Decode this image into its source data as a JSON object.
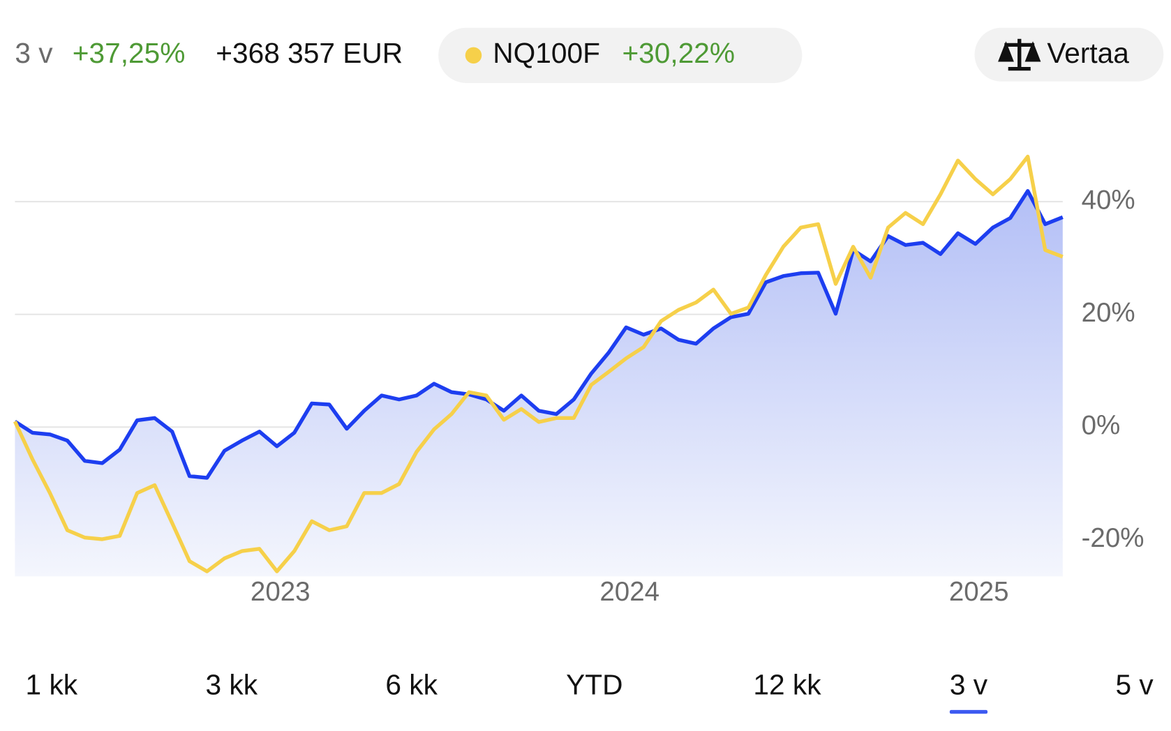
{
  "header": {
    "period": "3 v",
    "change_pct": "+37,25%",
    "change_abs": "+368 357 EUR"
  },
  "compare": {
    "change": "+30,22%",
    "button": "Vertaa"
  },
  "periods": {
    "labels": [
      "1 kk",
      "3 kk",
      "6 kk",
      "YTD",
      "12 kk",
      "3 v",
      "5 v"
    ],
    "selected": 5
  },
  "chart_data": {
    "type": "line",
    "x": [
      2022.24,
      2022.29,
      2022.34,
      2022.39,
      2022.44,
      2022.49,
      2022.54,
      2022.59,
      2022.64,
      2022.69,
      2022.74,
      2022.79,
      2022.84,
      2022.89,
      2022.94,
      2022.99,
      2023.04,
      2023.09,
      2023.14,
      2023.19,
      2023.24,
      2023.29,
      2023.34,
      2023.39,
      2023.44,
      2023.49,
      2023.54,
      2023.59,
      2023.64,
      2023.69,
      2023.74,
      2023.79,
      2023.84,
      2023.89,
      2023.94,
      2023.99,
      2024.04,
      2024.09,
      2024.14,
      2024.19,
      2024.24,
      2024.29,
      2024.34,
      2024.39,
      2024.44,
      2024.49,
      2024.54,
      2024.59,
      2024.64,
      2024.69,
      2024.74,
      2024.79,
      2024.84,
      2024.89,
      2024.94,
      2024.99,
      2025.04,
      2025.09,
      2025.14,
      2025.19,
      2025.24
    ],
    "series": [
      {
        "color": "#1d3ef0",
        "area": true,
        "values": [
          1,
          -1,
          -1.3,
          -2.4,
          -6,
          -6.4,
          -4,
          1.2,
          1.6,
          -0.8,
          -8.7,
          -9,
          -4.2,
          -2.4,
          -0.8,
          -3.4,
          -1,
          4.2,
          4,
          -0.3,
          2.9,
          5.6,
          4.9,
          5.6,
          7.7,
          6.2,
          5.8,
          4.9,
          2.9,
          5.6,
          2.9,
          2.3,
          4.9,
          9.5,
          13.2,
          17.7,
          16.4,
          17.5,
          15.5,
          14.8,
          17.5,
          19.5,
          20.1,
          25.7,
          26.8,
          27.3,
          27.4,
          20.1,
          31.4,
          29.4,
          33.9,
          32.3,
          32.7,
          30.7,
          34.4,
          32.5,
          35.4,
          37.1,
          41.9,
          36,
          37.25
        ]
      },
      {
        "name": "NQ100F",
        "color": "#f6d04a",
        "values": [
          1,
          -5.7,
          -11.7,
          -18.3,
          -19.6,
          -19.9,
          -19.3,
          -11.7,
          -10.3,
          -17,
          -23.8,
          -25.6,
          -23.3,
          -22,
          -21.6,
          -25.6,
          -22,
          -16.7,
          -18.3,
          -17.6,
          -11.7,
          -11.7,
          -10.1,
          -4.4,
          -0.4,
          2.3,
          6.2,
          5.6,
          1.3,
          3.2,
          0.9,
          1.6,
          1.6,
          7.5,
          9.8,
          12.2,
          14.2,
          18.8,
          20.8,
          22.1,
          24.4,
          20.1,
          21.2,
          27,
          32,
          35.4,
          36,
          25.4,
          32,
          26.5,
          35.4,
          38,
          36,
          41.3,
          47.3,
          44,
          41.3,
          44,
          48,
          31.4,
          30.22
        ]
      }
    ],
    "xlim": [
      2022.24,
      2025.24
    ],
    "xticks": [
      2023,
      2024,
      2025
    ],
    "ylim": [
      -26.5,
      50
    ],
    "yticks": [
      {
        "value": -20,
        "label": "-20%"
      },
      {
        "value": 0,
        "label": "0%"
      },
      {
        "value": 20,
        "label": "20%"
      },
      {
        "value": 40,
        "label": "40%"
      }
    ],
    "grid": true
  }
}
